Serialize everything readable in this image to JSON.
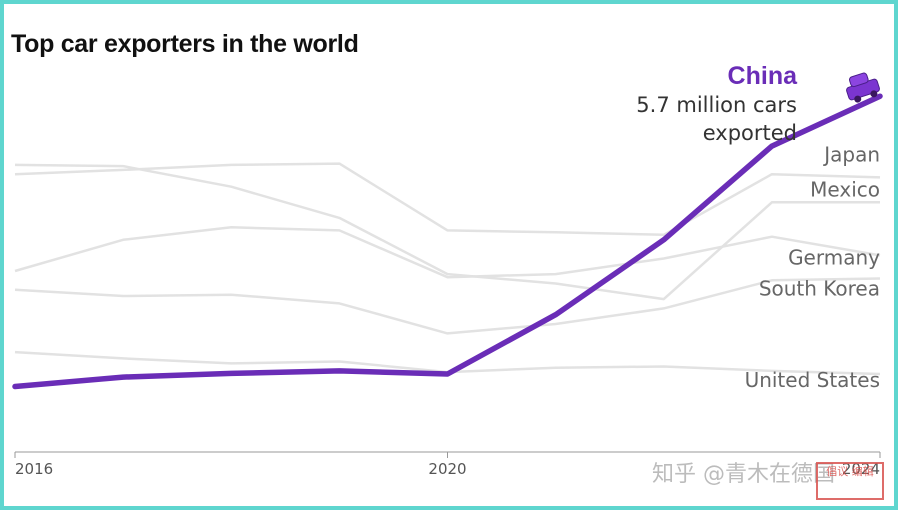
{
  "chart_data": {
    "type": "line",
    "title": "Top car exporters in the world",
    "x_tick_labels": [
      "2016",
      "2020",
      "2024"
    ],
    "x_positions": [
      2016,
      2017,
      2018,
      2019,
      2020,
      2021,
      2022,
      2023,
      2024
    ],
    "highlight": {
      "name": "China",
      "annotation_line1": "5.7 million cars",
      "annotation_line2": "exported",
      "color": "#6a2db7",
      "points": [
        [
          2016,
          1.05
        ],
        [
          2017,
          1.2
        ],
        [
          2018,
          1.26
        ],
        [
          2019,
          1.3
        ],
        [
          2020,
          1.25
        ],
        [
          2021,
          2.2
        ],
        [
          2022,
          3.4
        ],
        [
          2023,
          4.9
        ],
        [
          2024,
          5.7
        ]
      ]
    },
    "series": [
      {
        "name": "Japan",
        "color": "#e2e2e2",
        "points": [
          [
            2016,
            4.45
          ],
          [
            2017,
            4.52
          ],
          [
            2018,
            4.6
          ],
          [
            2019,
            4.62
          ],
          [
            2020,
            3.55
          ],
          [
            2021,
            3.52
          ],
          [
            2022,
            3.48
          ],
          [
            2023,
            4.45
          ],
          [
            2024,
            4.4
          ]
        ]
      },
      {
        "name": "Mexico",
        "color": "#e2e2e2",
        "points": [
          [
            2016,
            4.6
          ],
          [
            2017,
            4.58
          ],
          [
            2018,
            4.25
          ],
          [
            2019,
            3.75
          ],
          [
            2020,
            2.85
          ],
          [
            2021,
            2.7
          ],
          [
            2022,
            2.45
          ],
          [
            2023,
            4.0
          ],
          [
            2024,
            4.0
          ]
        ]
      },
      {
        "name": "Germany",
        "color": "#e2e2e2",
        "points": [
          [
            2016,
            2.9
          ],
          [
            2017,
            3.4
          ],
          [
            2018,
            3.6
          ],
          [
            2019,
            3.55
          ],
          [
            2020,
            2.8
          ],
          [
            2021,
            2.85
          ],
          [
            2022,
            3.1
          ],
          [
            2023,
            3.45
          ],
          [
            2024,
            3.15
          ]
        ]
      },
      {
        "name": "South Korea",
        "color": "#e2e2e2",
        "points": [
          [
            2016,
            2.6
          ],
          [
            2017,
            2.5
          ],
          [
            2018,
            2.52
          ],
          [
            2019,
            2.38
          ],
          [
            2020,
            1.9
          ],
          [
            2021,
            2.05
          ],
          [
            2022,
            2.3
          ],
          [
            2023,
            2.75
          ],
          [
            2024,
            2.78
          ]
        ]
      },
      {
        "name": "United States",
        "color": "#e2e2e2",
        "points": [
          [
            2016,
            1.6
          ],
          [
            2017,
            1.5
          ],
          [
            2018,
            1.42
          ],
          [
            2019,
            1.45
          ],
          [
            2020,
            1.28
          ],
          [
            2021,
            1.35
          ],
          [
            2022,
            1.37
          ],
          [
            2023,
            1.3
          ],
          [
            2024,
            1.25
          ]
        ]
      }
    ],
    "ylim": [
      0,
      6.2
    ],
    "grid": false,
    "legend": "direct labels at right"
  },
  "watermark": "知乎 @青木在德国",
  "stamp_text": "倡议 编辑"
}
